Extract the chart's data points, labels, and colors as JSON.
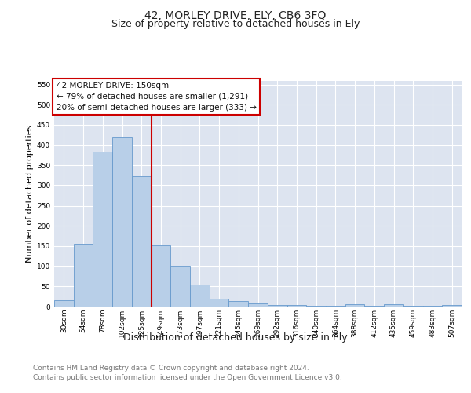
{
  "title": "42, MORLEY DRIVE, ELY, CB6 3FQ",
  "subtitle": "Size of property relative to detached houses in Ely",
  "xlabel": "Distribution of detached houses by size in Ely",
  "ylabel": "Number of detached properties",
  "footer_line1": "Contains HM Land Registry data © Crown copyright and database right 2024.",
  "footer_line2": "Contains public sector information licensed under the Open Government Licence v3.0.",
  "bin_labels": [
    "30sqm",
    "54sqm",
    "78sqm",
    "102sqm",
    "125sqm",
    "149sqm",
    "173sqm",
    "197sqm",
    "221sqm",
    "245sqm",
    "269sqm",
    "292sqm",
    "316sqm",
    "340sqm",
    "364sqm",
    "388sqm",
    "412sqm",
    "435sqm",
    "459sqm",
    "483sqm",
    "507sqm"
  ],
  "bar_values": [
    15,
    153,
    383,
    420,
    323,
    152,
    100,
    55,
    20,
    13,
    8,
    4,
    4,
    1,
    1,
    5,
    1,
    5,
    1,
    1,
    4
  ],
  "bar_color": "#b8cfe8",
  "bar_edge_color": "#6699cc",
  "vline_color": "#cc0000",
  "annotation_text": "42 MORLEY DRIVE: 150sqm\n← 79% of detached houses are smaller (1,291)\n20% of semi-detached houses are larger (333) →",
  "annotation_box_color": "#cc0000",
  "ylim": [
    0,
    560
  ],
  "yticks": [
    0,
    50,
    100,
    150,
    200,
    250,
    300,
    350,
    400,
    450,
    500,
    550
  ],
  "plot_bg_color": "#dde4f0",
  "grid_color": "#ffffff",
  "title_fontsize": 10,
  "subtitle_fontsize": 9,
  "ylabel_fontsize": 8,
  "xlabel_fontsize": 9,
  "tick_fontsize": 6.5,
  "annotation_fontsize": 7.5,
  "footer_fontsize": 6.5
}
